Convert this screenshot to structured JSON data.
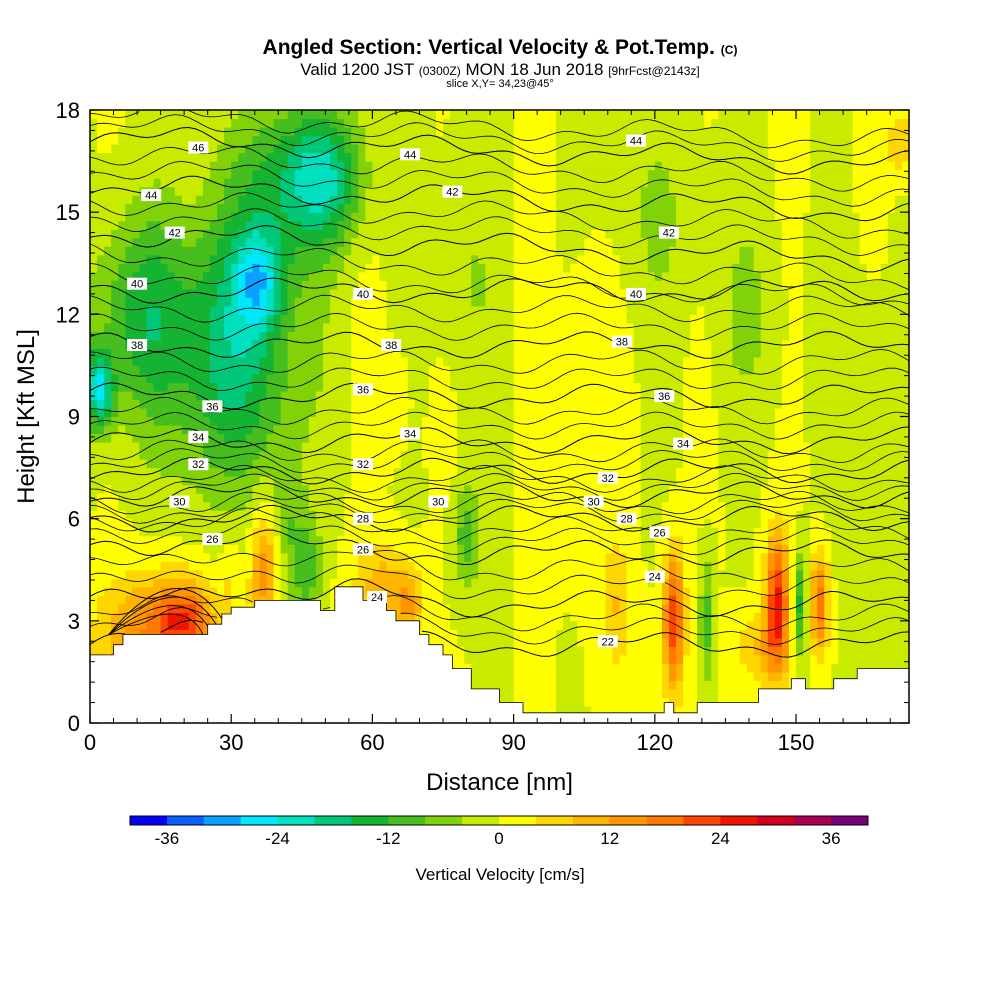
{
  "header": {
    "title": "Angled Section: Vertical Velocity & Pot.Temp.",
    "title_tag": "(C)",
    "valid_prefix": "Valid 1200 JST",
    "valid_utc": "(0300Z)",
    "valid_date": "MON 18 Jun 2018",
    "valid_fcst": "[9hrFcst@2143z]",
    "slice": "slice X,Y= 34,23@45°"
  },
  "chart_data": {
    "type": "heatmap",
    "title": "Angled Section: Vertical Velocity & Pot.Temp.",
    "xlabel": "Distance [nm]",
    "ylabel": "Height [Kft MSL]",
    "xlim": [
      0,
      174
    ],
    "ylim": [
      0,
      18
    ],
    "x_ticks": [
      "0",
      "30",
      "60",
      "90",
      "120",
      "150"
    ],
    "y_ticks": [
      "0",
      "3",
      "6",
      "9",
      "12",
      "15",
      "18"
    ],
    "colorbar": {
      "label": "Vertical Velocity [cm/s]",
      "tick_labels": [
        "-36",
        "-24",
        "-12",
        "0",
        "12",
        "24",
        "36"
      ],
      "levels": [
        -40,
        -36,
        -32,
        -28,
        -24,
        -20,
        -16,
        -12,
        -8,
        -4,
        0,
        4,
        8,
        12,
        16,
        20,
        24,
        28,
        32,
        36,
        40
      ],
      "colors": [
        "#0000ff",
        "#0a5fff",
        "#0aa0ff",
        "#00e6ff",
        "#00e0c0",
        "#00c878",
        "#14b432",
        "#46be1e",
        "#82d20a",
        "#c8eb00",
        "#ffff00",
        "#ffd700",
        "#ffb400",
        "#ff9600",
        "#ff7800",
        "#ff4600",
        "#f01400",
        "#d2001e",
        "#aa0050",
        "#780078"
      ]
    },
    "terrain_top_kft": [
      [
        0,
        2.0
      ],
      [
        5,
        2.0
      ],
      [
        5,
        2.3
      ],
      [
        7,
        2.3
      ],
      [
        7,
        2.6
      ],
      [
        25,
        2.6
      ],
      [
        25,
        2.9
      ],
      [
        28,
        2.9
      ],
      [
        28,
        3.2
      ],
      [
        30,
        3.2
      ],
      [
        30,
        3.4
      ],
      [
        35,
        3.4
      ],
      [
        35,
        3.6
      ],
      [
        49,
        3.6
      ],
      [
        49,
        3.3
      ],
      [
        52,
        3.3
      ],
      [
        52,
        4.0
      ],
      [
        58,
        4.0
      ],
      [
        58,
        3.6
      ],
      [
        63,
        3.6
      ],
      [
        63,
        3.3
      ],
      [
        65,
        3.3
      ],
      [
        65,
        3.0
      ],
      [
        70,
        3.0
      ],
      [
        70,
        2.6
      ],
      [
        72,
        2.6
      ],
      [
        72,
        2.3
      ],
      [
        75,
        2.3
      ],
      [
        75,
        2.0
      ],
      [
        77,
        2.0
      ],
      [
        77,
        1.6
      ],
      [
        81,
        1.6
      ],
      [
        81,
        1.0
      ],
      [
        87,
        1.0
      ],
      [
        87,
        0.6
      ],
      [
        92,
        0.6
      ],
      [
        92,
        0.3
      ],
      [
        122,
        0.3
      ],
      [
        122,
        0.6
      ],
      [
        124,
        0.6
      ],
      [
        124,
        0.3
      ],
      [
        129,
        0.3
      ],
      [
        129,
        0.6
      ],
      [
        142,
        0.6
      ],
      [
        142,
        1.0
      ],
      [
        149,
        1.0
      ],
      [
        149,
        1.3
      ],
      [
        152,
        1.3
      ],
      [
        152,
        1.0
      ],
      [
        158,
        1.0
      ],
      [
        158,
        1.3
      ],
      [
        163,
        1.3
      ],
      [
        163,
        1.6
      ],
      [
        174,
        1.6
      ]
    ],
    "velocity_features": [
      {
        "x": 15,
        "y": 2.5,
        "sx": 12,
        "sy": 1.8,
        "w": 18
      },
      {
        "x": 20,
        "y": 3.2,
        "sx": 5,
        "sy": 0.9,
        "w": 12
      },
      {
        "x": 37,
        "y": 4.5,
        "sx": 3,
        "sy": 1.8,
        "w": 15
      },
      {
        "x": 30,
        "y": 4.5,
        "sx": 2,
        "sy": 1.2,
        "w": 4
      },
      {
        "x": 46,
        "y": 4.5,
        "sx": 3,
        "sy": 1.6,
        "w": -10
      },
      {
        "x": 42,
        "y": 6,
        "sx": 3,
        "sy": 2.5,
        "w": -6
      },
      {
        "x": 30,
        "y": 11,
        "sx": 14,
        "sy": 4,
        "w": -18
      },
      {
        "x": 36,
        "y": 13,
        "sx": 5,
        "sy": 1.5,
        "w": -16
      },
      {
        "x": 10,
        "y": 12,
        "sx": 10,
        "sy": 3,
        "w": -12
      },
      {
        "x": 2,
        "y": 9.8,
        "sx": 3,
        "sy": 1.2,
        "w": -22
      },
      {
        "x": 50,
        "y": 16,
        "sx": 8,
        "sy": 2,
        "w": -18
      },
      {
        "x": 40,
        "y": 16,
        "sx": 10,
        "sy": 2.5,
        "w": -10
      },
      {
        "x": 62,
        "y": 4.0,
        "sx": 6,
        "sy": 1.3,
        "w": 10
      },
      {
        "x": 68,
        "y": 3.5,
        "sx": 3,
        "sy": 1,
        "w": 10
      },
      {
        "x": 65,
        "y": 9.5,
        "sx": 3,
        "sy": 1.5,
        "w": 4
      },
      {
        "x": 75,
        "y": 8.5,
        "sx": 2.5,
        "sy": 1.2,
        "w": 4
      },
      {
        "x": 80,
        "y": 5.5,
        "sx": 3,
        "sy": 1.5,
        "w": -10
      },
      {
        "x": 112,
        "y": 3.5,
        "sx": 3,
        "sy": 2,
        "w": 8
      },
      {
        "x": 124,
        "y": 3,
        "sx": 2.2,
        "sy": 2,
        "w": 24
      },
      {
        "x": 131,
        "y": 3,
        "sx": 1.5,
        "sy": 1.8,
        "w": -10
      },
      {
        "x": 146,
        "y": 3.5,
        "sx": 2.5,
        "sy": 2,
        "w": 26
      },
      {
        "x": 142,
        "y": 2.2,
        "sx": 5,
        "sy": 1,
        "w": 8
      },
      {
        "x": 151,
        "y": 3.5,
        "sx": 1.2,
        "sy": 1.5,
        "w": -14
      },
      {
        "x": 155,
        "y": 3.5,
        "sx": 2,
        "sy": 1.5,
        "w": 18
      },
      {
        "x": 165,
        "y": 8,
        "sx": 6,
        "sy": 5,
        "w": -4
      },
      {
        "x": 140,
        "y": 12,
        "sx": 8,
        "sy": 3,
        "w": -4
      },
      {
        "x": 105,
        "y": 10,
        "sx": 5,
        "sy": 4,
        "w": 4
      },
      {
        "x": 80,
        "y": 13,
        "sx": 6,
        "sy": 4,
        "w": -4
      },
      {
        "x": 120,
        "y": 15,
        "sx": 10,
        "sy": 3,
        "w": -4
      },
      {
        "x": 172,
        "y": 17,
        "sx": 3,
        "sy": 1,
        "w": 8
      }
    ],
    "isentrope_levels": [
      22,
      24,
      26,
      28,
      30,
      32,
      34,
      36,
      38,
      40,
      42,
      44,
      46
    ],
    "isentrope_labels": [
      {
        "text": "22",
        "x": 110,
        "y": 2.4
      },
      {
        "text": "24",
        "x": 61,
        "y": 3.7
      },
      {
        "text": "24",
        "x": 120,
        "y": 4.3
      },
      {
        "text": "26",
        "x": 26,
        "y": 5.4
      },
      {
        "text": "26",
        "x": 58,
        "y": 5.1
      },
      {
        "text": "26",
        "x": 121,
        "y": 5.6
      },
      {
        "text": "28",
        "x": 58,
        "y": 6.0
      },
      {
        "text": "28",
        "x": 114,
        "y": 6.0
      },
      {
        "text": "30",
        "x": 19,
        "y": 6.5
      },
      {
        "text": "30",
        "x": 74,
        "y": 6.5
      },
      {
        "text": "30",
        "x": 107,
        "y": 6.5
      },
      {
        "text": "32",
        "x": 23,
        "y": 7.6
      },
      {
        "text": "32",
        "x": 58,
        "y": 7.6
      },
      {
        "text": "32",
        "x": 110,
        "y": 7.2
      },
      {
        "text": "34",
        "x": 23,
        "y": 8.4
      },
      {
        "text": "34",
        "x": 68,
        "y": 8.5
      },
      {
        "text": "34",
        "x": 126,
        "y": 8.2
      },
      {
        "text": "36",
        "x": 26,
        "y": 9.3
      },
      {
        "text": "36",
        "x": 58,
        "y": 9.8
      },
      {
        "text": "36",
        "x": 122,
        "y": 9.6
      },
      {
        "text": "38",
        "x": 10,
        "y": 11.1
      },
      {
        "text": "38",
        "x": 64,
        "y": 11.1
      },
      {
        "text": "38",
        "x": 113,
        "y": 11.2
      },
      {
        "text": "40",
        "x": 10,
        "y": 12.9
      },
      {
        "text": "40",
        "x": 58,
        "y": 12.6
      },
      {
        "text": "40",
        "x": 116,
        "y": 12.6
      },
      {
        "text": "42",
        "x": 18,
        "y": 14.4
      },
      {
        "text": "42",
        "x": 77,
        "y": 15.6
      },
      {
        "text": "42",
        "x": 123,
        "y": 14.4
      },
      {
        "text": "44",
        "x": 13,
        "y": 15.5
      },
      {
        "text": "44",
        "x": 68,
        "y": 16.7
      },
      {
        "text": "44",
        "x": 116,
        "y": 17.1
      },
      {
        "text": "46",
        "x": 23,
        "y": 16.9
      }
    ]
  }
}
